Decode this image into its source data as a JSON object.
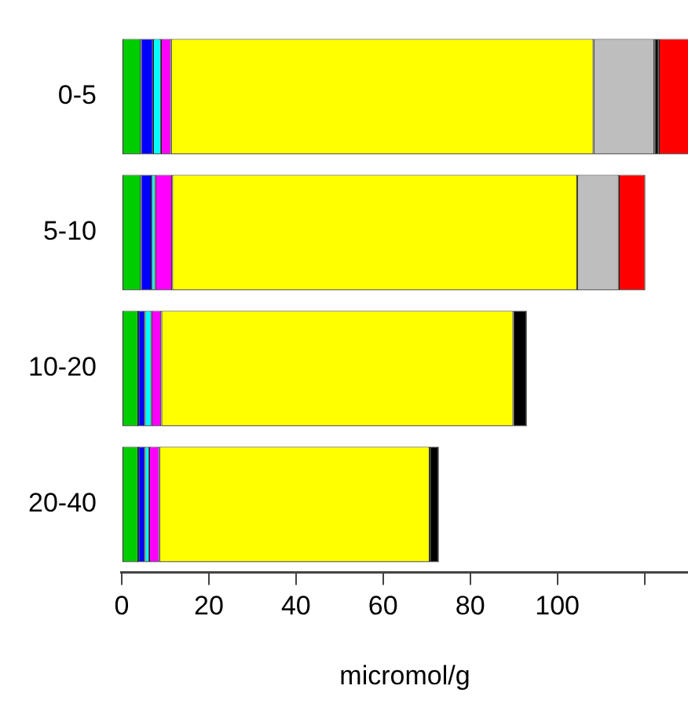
{
  "chart_data": {
    "type": "bar",
    "orientation": "horizontal",
    "stacked": true,
    "xlabel": "micromol/g",
    "categories": [
      "0-5",
      "5-10",
      "10-20",
      "20-40"
    ],
    "series": [
      {
        "color": "#00cd00",
        "values": [
          4.4,
          4.4,
          3.8,
          3.8
        ]
      },
      {
        "color": "#0000ff",
        "values": [
          2.8,
          2.5,
          1.5,
          1.5
        ]
      },
      {
        "color": "#00ffff",
        "values": [
          1.8,
          0.8,
          1.5,
          1.0
        ]
      },
      {
        "color": "#ff00ff",
        "values": [
          2.3,
          3.9,
          2.3,
          2.3
        ]
      },
      {
        "color": "#ffff00",
        "values": [
          97,
          93,
          80.8,
          62.1
        ]
      },
      {
        "color": "#bebebe",
        "values": [
          14,
          9.5,
          0,
          0
        ]
      },
      {
        "color": "#000000",
        "values": [
          1.0,
          0,
          3.1,
          2.1
        ]
      },
      {
        "color": "#ff0000",
        "values": [
          7,
          6.1,
          0,
          0
        ]
      }
    ],
    "xlim": [
      0,
      130
    ],
    "xticks": [
      0,
      20,
      40,
      60,
      80,
      100,
      {
        "value": 120,
        "label": null
      }
    ],
    "grid": false,
    "legend": false
  }
}
